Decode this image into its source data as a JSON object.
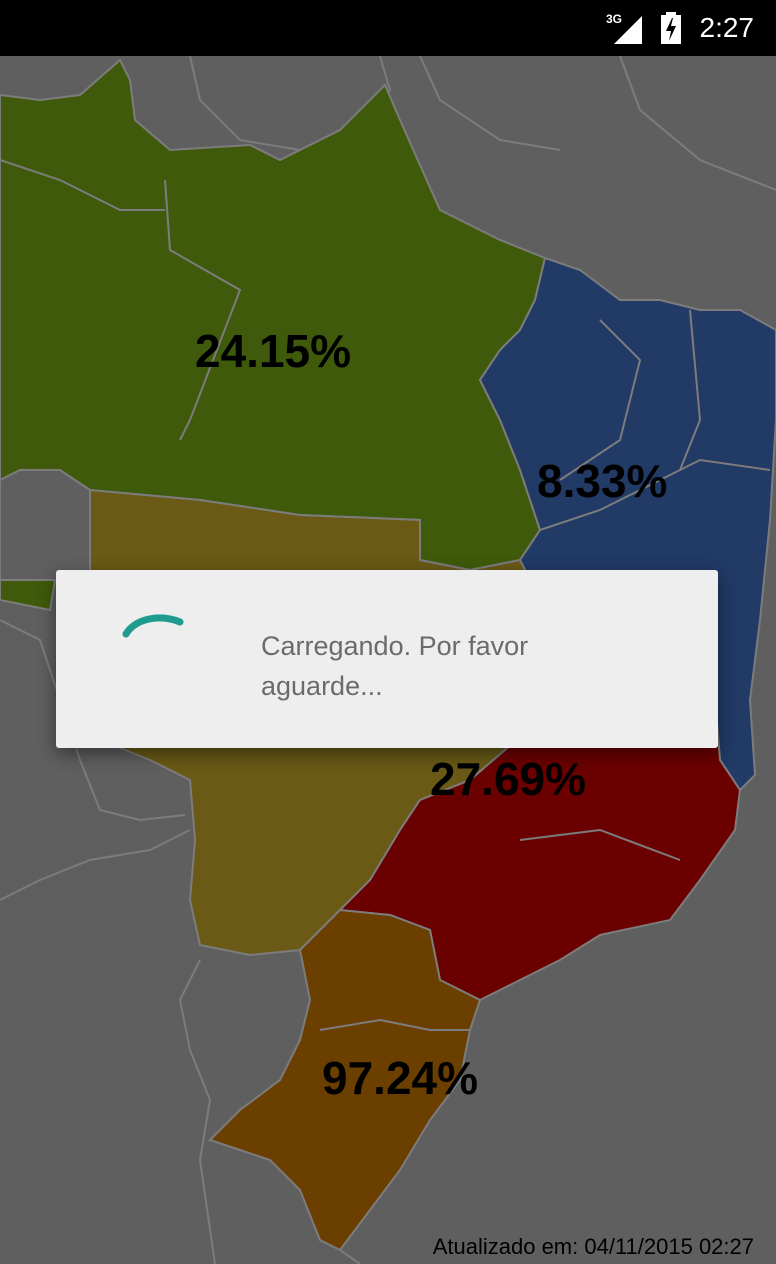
{
  "status_bar": {
    "network_label": "3G",
    "time": "2:27"
  },
  "map": {
    "regions": [
      {
        "name": "norte",
        "percent": "24.15%",
        "color": "#3f5a0a"
      },
      {
        "name": "nordeste",
        "percent": "8.33%",
        "color": "#213a66"
      },
      {
        "name": "centro-oeste",
        "percent": "",
        "color": "#6a5a16"
      },
      {
        "name": "sudeste",
        "percent": "27.69%",
        "color": "#6b0000"
      },
      {
        "name": "sul",
        "percent": "97.24%",
        "color": "#6b3f00"
      }
    ],
    "updated_text": "Atualizado em: 04/11/2015 02:27"
  },
  "dialog": {
    "message": "Carregando. Por favor aguarde...",
    "spinner_color": "#1f9c8e"
  }
}
